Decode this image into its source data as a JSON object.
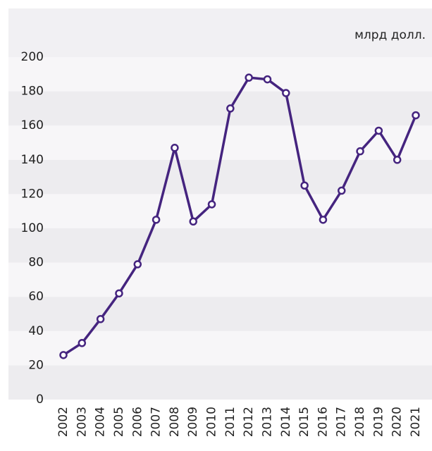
{
  "chart_data": {
    "type": "line",
    "unit_label": "млрд долл.",
    "categories": [
      "2002",
      "2003",
      "2004",
      "2005",
      "2006",
      "2007",
      "2008",
      "2009",
      "2010",
      "2011",
      "2012",
      "2013",
      "2014",
      "2015",
      "2016",
      "2017",
      "2018",
      "2019",
      "2020",
      "2021"
    ],
    "series": [
      {
        "name": "",
        "color": "#45247f",
        "values": [
          26,
          33,
          47,
          62,
          79,
          105,
          147,
          104,
          114,
          170,
          188,
          187,
          179,
          125,
          105,
          122,
          145,
          157,
          140,
          166
        ]
      }
    ],
    "ylim": [
      0,
      200
    ],
    "yticks": [
      0,
      20,
      40,
      60,
      80,
      100,
      120,
      140,
      160,
      180,
      200
    ],
    "grid": true
  }
}
